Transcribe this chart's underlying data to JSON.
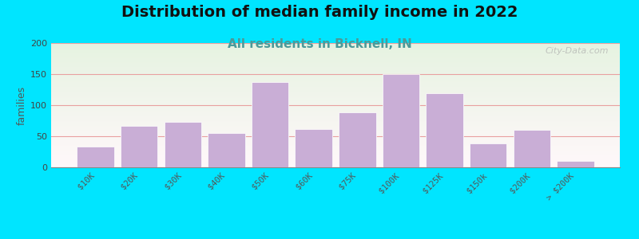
{
  "title": "Distribution of median family income in 2022",
  "subtitle": "All residents in Bicknell, IN",
  "ylabel": "families",
  "categories": [
    "$10K",
    "$20K",
    "$30K",
    "$40K",
    "$50K",
    "$60K",
    "$75K",
    "$100K",
    "$125K",
    "$150k",
    "$200K",
    "> $200K"
  ],
  "values": [
    33,
    67,
    73,
    55,
    137,
    62,
    88,
    150,
    119,
    38,
    60,
    10
  ],
  "bar_color": "#c9aed6",
  "bar_edge_color": "#ffffff",
  "background_outer": "#00e5ff",
  "grid_color": "#e8a0a0",
  "ylim": [
    0,
    200
  ],
  "yticks": [
    0,
    50,
    100,
    150,
    200
  ],
  "title_fontsize": 14,
  "subtitle_fontsize": 11,
  "subtitle_color": "#4a9a9a",
  "ylabel_fontsize": 9,
  "watermark": "City-Data.com"
}
